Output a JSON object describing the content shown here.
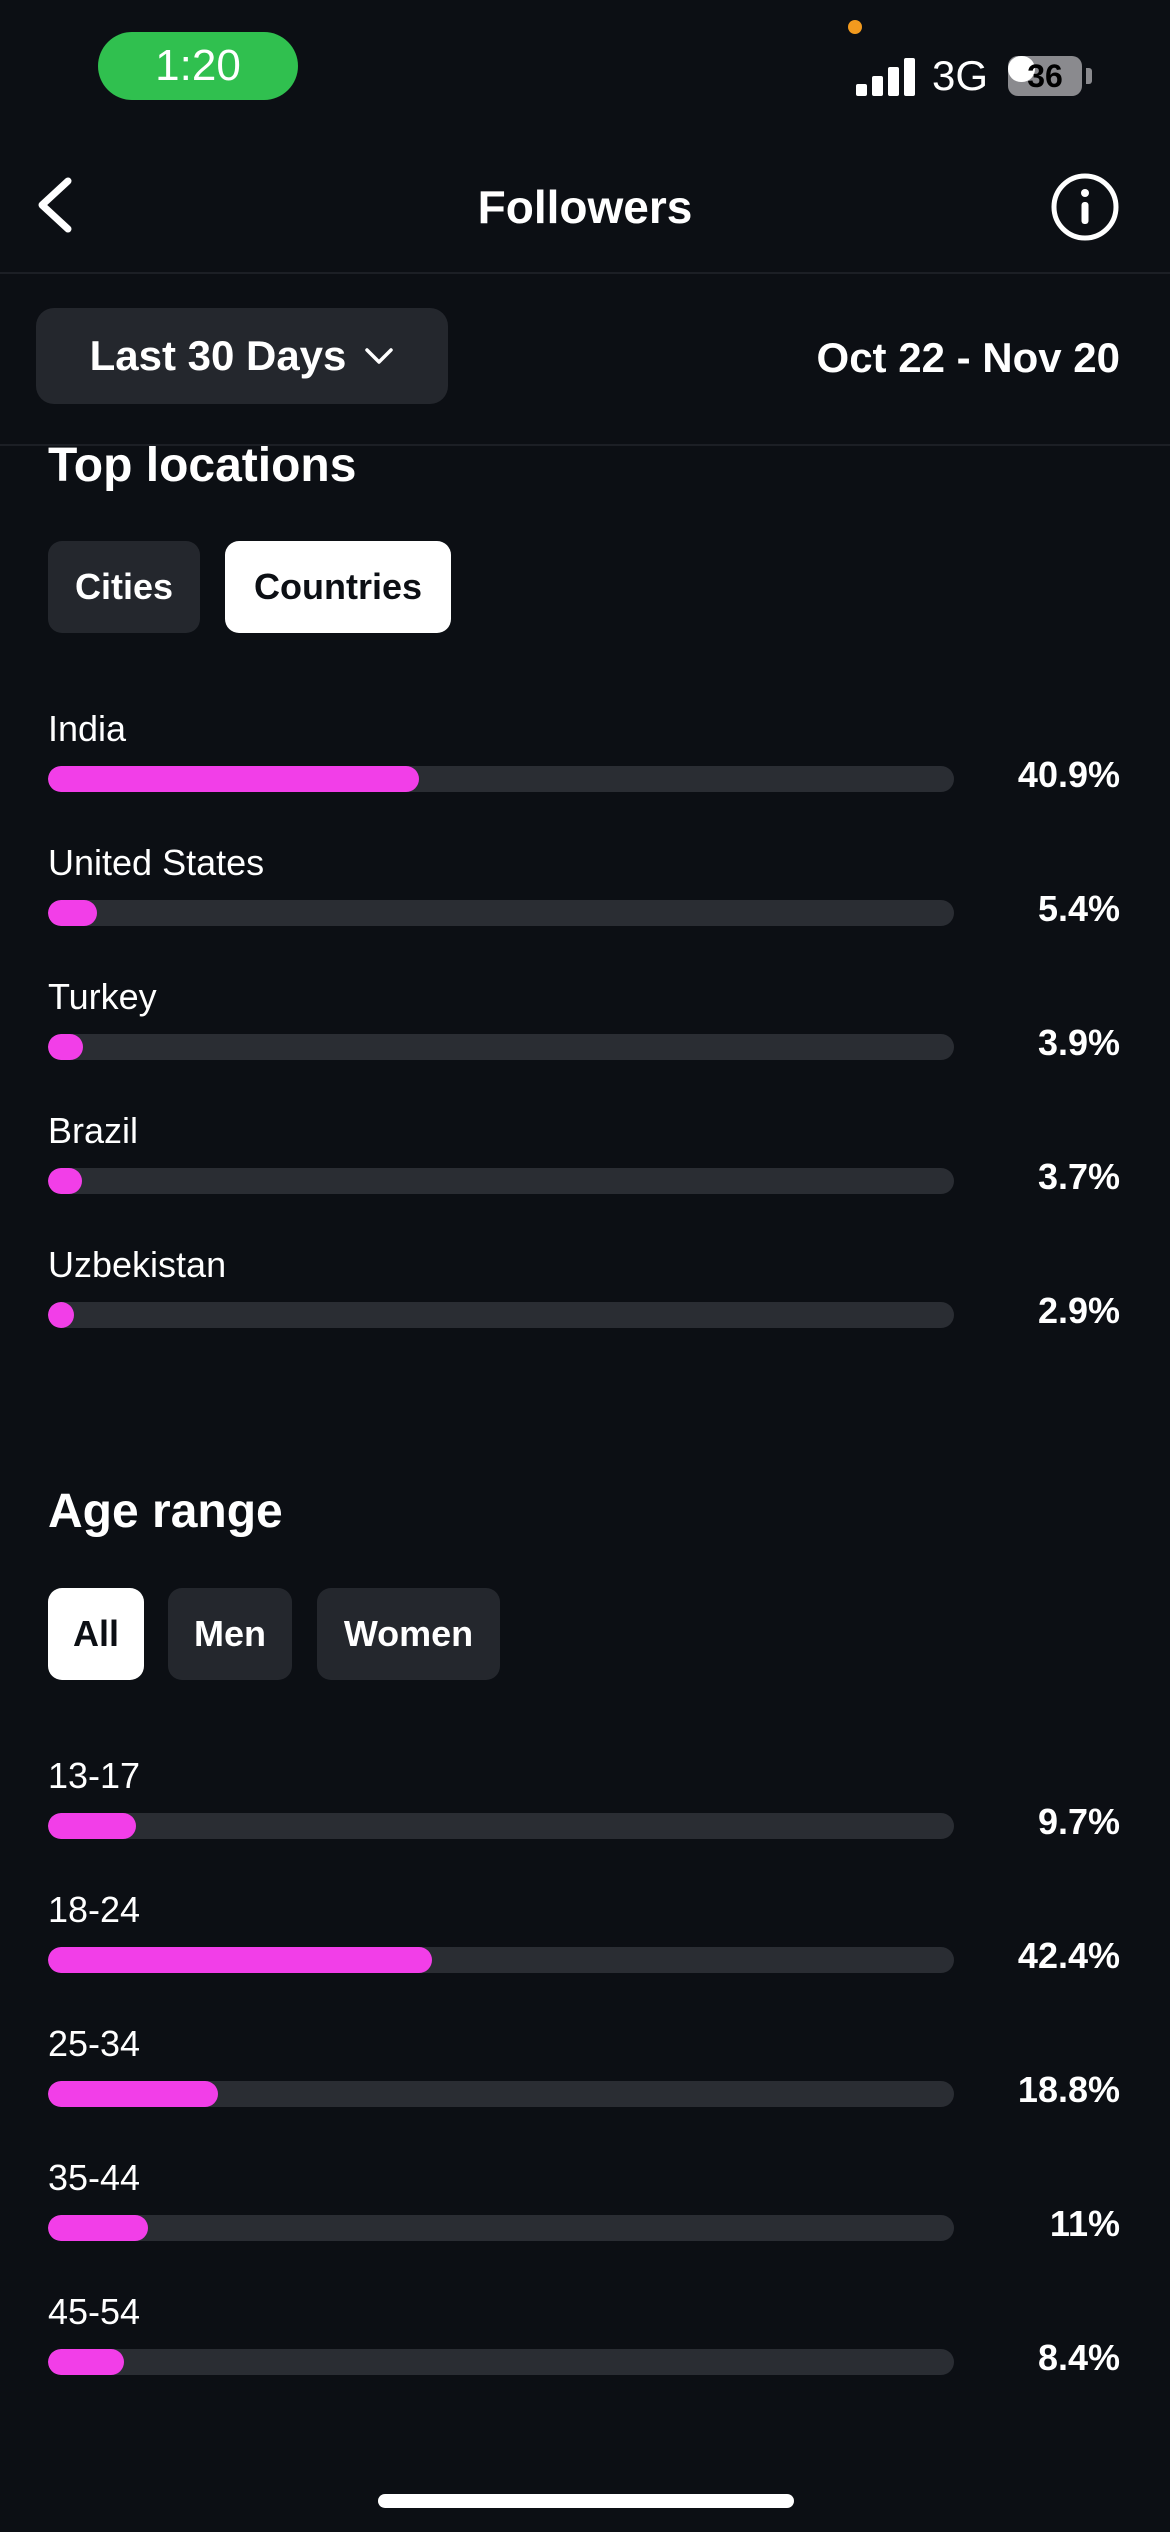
{
  "status_bar": {
    "time": "1:20",
    "network": "3G",
    "battery": "36",
    "battery_level": 0.36,
    "colors": {
      "time_pill": "#30c04f",
      "privacy_dot": "#f29a1e"
    }
  },
  "nav": {
    "title": "Followers",
    "back_icon": "chevron-left-icon",
    "info_icon": "info-icon"
  },
  "range": {
    "selected": "Last 30 Days",
    "dropdown_icon": "chevron-down-icon",
    "dates": "Oct 22 - Nov 20"
  },
  "top_locations": {
    "title": "Top locations",
    "tabs": [
      {
        "label": "Cities",
        "active": false
      },
      {
        "label": "Countries",
        "active": true
      }
    ],
    "rows": [
      {
        "label": "India",
        "value": "40.9%",
        "percent": 40.9
      },
      {
        "label": "United States",
        "value": "5.4%",
        "percent": 5.4
      },
      {
        "label": "Turkey",
        "value": "3.9%",
        "percent": 3.9
      },
      {
        "label": "Brazil",
        "value": "3.7%",
        "percent": 3.7
      },
      {
        "label": "Uzbekistan",
        "value": "2.9%",
        "percent": 2.9
      }
    ]
  },
  "age_range": {
    "title": "Age range",
    "tabs": [
      {
        "label": "All",
        "active": true
      },
      {
        "label": "Men",
        "active": false
      },
      {
        "label": "Women",
        "active": false
      }
    ],
    "rows": [
      {
        "label": "13-17",
        "value": "9.7%",
        "percent": 9.7
      },
      {
        "label": "18-24",
        "value": "42.4%",
        "percent": 42.4
      },
      {
        "label": "25-34",
        "value": "18.8%",
        "percent": 18.8
      },
      {
        "label": "35-44",
        "value": "11%",
        "percent": 11
      },
      {
        "label": "45-54",
        "value": "8.4%",
        "percent": 8.4
      }
    ]
  },
  "colors": {
    "background": "#0c0f14",
    "bar_fill": "#f23ee8",
    "bar_track": "#2a2d33",
    "chip_inactive": "#24272d",
    "chip_active": "#ffffff"
  }
}
